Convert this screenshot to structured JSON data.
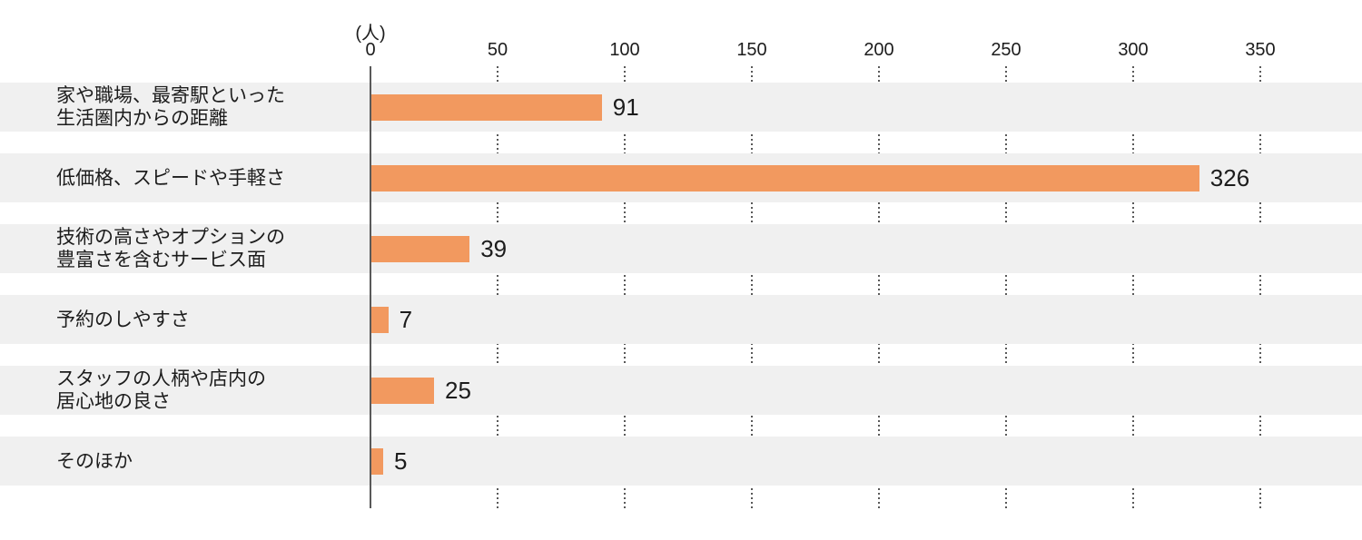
{
  "chart_data": {
    "type": "bar",
    "orientation": "horizontal",
    "title": "",
    "unit_label": "(人)",
    "categories": [
      "家や職場、最寄駅といった\n生活圏内からの距離",
      "低価格、スピードや手軽さ",
      "技術の高さやオプションの\n豊富さを含むサービス面",
      "予約のしやすさ",
      "スタッフの人柄や店内の\n居心地の良さ",
      "そのほか"
    ],
    "values": [
      91,
      326,
      39,
      7,
      25,
      5
    ],
    "value_labels": [
      "91",
      "326",
      "39",
      "7",
      "25",
      "5"
    ],
    "xlabel": "",
    "ylabel": "",
    "xlim": [
      0,
      350
    ],
    "x_ticks": [
      0,
      50,
      100,
      150,
      200,
      250,
      300,
      350
    ],
    "grid": "dotted-vertical-in-row-gaps",
    "legend": "none",
    "colors": {
      "bar": "#F2995F",
      "band": "#F0F0F0",
      "axis": "#595959",
      "text": "#1C1C1C"
    }
  }
}
